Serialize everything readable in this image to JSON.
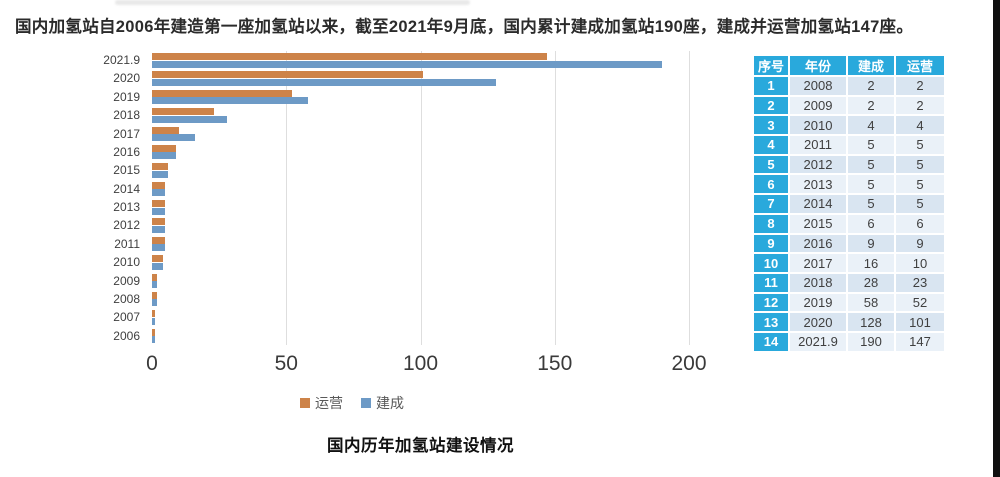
{
  "note": "国内加氢站自2006年建造第一座加氢站以来，截至2021年9月底，国内累计建成加氢站190座，建成并运营加氢站147座。",
  "caption": "国内历年加氢站建设情况",
  "colors": {
    "operating_orange": "#cd8349",
    "built_blue": "#6d9ac6",
    "table_header_cyan": "#29a9dc",
    "row_odd": "#d9e5f1",
    "row_even": "#eaf1f8",
    "cell_text": "#3f3f3f"
  },
  "chart_data": {
    "type": "bar",
    "orientation": "horizontal",
    "title": "国内历年加氢站建设情况",
    "xlabel": "",
    "ylabel": "",
    "xlim": [
      0,
      200
    ],
    "xticks": [
      0,
      50,
      100,
      150,
      200
    ],
    "grid": true,
    "legend_position": "bottom",
    "categories": [
      "2021.9",
      "2020",
      "2019",
      "2018",
      "2017",
      "2016",
      "2015",
      "2014",
      "2013",
      "2012",
      "2011",
      "2010",
      "2009",
      "2008",
      "2007",
      "2006"
    ],
    "series": [
      {
        "name": "运营",
        "color": "#cd8349",
        "values": [
          147,
          101,
          52,
          23,
          10,
          9,
          6,
          5,
          5,
          5,
          5,
          4,
          2,
          2,
          1,
          1
        ]
      },
      {
        "name": "建成",
        "color": "#6d9ac6",
        "values": [
          190,
          128,
          58,
          28,
          16,
          9,
          6,
          5,
          5,
          5,
          5,
          4,
          2,
          2,
          1,
          1
        ]
      }
    ]
  },
  "table": {
    "headers": [
      "序号",
      "年份",
      "建成",
      "运营"
    ],
    "rows": [
      [
        "1",
        "2008",
        "2",
        "2"
      ],
      [
        "2",
        "2009",
        "2",
        "2"
      ],
      [
        "3",
        "2010",
        "4",
        "4"
      ],
      [
        "4",
        "2011",
        "5",
        "5"
      ],
      [
        "5",
        "2012",
        "5",
        "5"
      ],
      [
        "6",
        "2013",
        "5",
        "5"
      ],
      [
        "7",
        "2014",
        "5",
        "5"
      ],
      [
        "8",
        "2015",
        "6",
        "6"
      ],
      [
        "9",
        "2016",
        "9",
        "9"
      ],
      [
        "10",
        "2017",
        "16",
        "10"
      ],
      [
        "11",
        "2018",
        "28",
        "23"
      ],
      [
        "12",
        "2019",
        "58",
        "52"
      ],
      [
        "13",
        "2020",
        "128",
        "101"
      ],
      [
        "14",
        "2021.9",
        "190",
        "147"
      ]
    ]
  }
}
